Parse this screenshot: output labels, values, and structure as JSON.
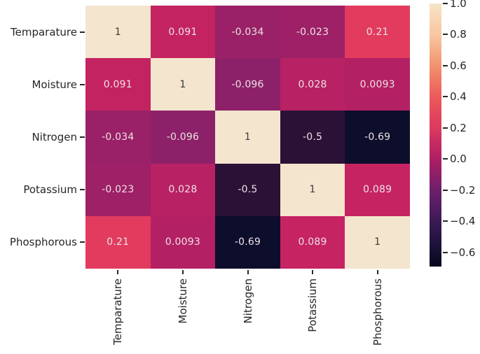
{
  "chart_data": {
    "type": "heatmap",
    "title": "",
    "xlabel": "",
    "ylabel": "",
    "categories": [
      "Temparature",
      "Moisture",
      "Nitrogen",
      "Potassium",
      "Phosphorous"
    ],
    "matrix": [
      [
        1,
        0.091,
        -0.034,
        -0.023,
        0.21
      ],
      [
        0.091,
        1,
        -0.096,
        0.028,
        0.0093
      ],
      [
        -0.034,
        -0.096,
        1,
        -0.5,
        -0.69
      ],
      [
        -0.023,
        0.028,
        -0.5,
        1,
        0.089
      ],
      [
        0.21,
        0.0093,
        -0.69,
        0.089,
        1
      ]
    ],
    "cell_labels": [
      [
        "1",
        "0.091",
        "-0.034",
        "-0.023",
        "0.21"
      ],
      [
        "0.091",
        "1",
        "-0.096",
        "0.028",
        "0.0093"
      ],
      [
        "-0.034",
        "-0.096",
        "1",
        "-0.5",
        "-0.69"
      ],
      [
        "-0.023",
        "0.028",
        "-0.5",
        "1",
        "0.089"
      ],
      [
        "0.21",
        "0.0093",
        "-0.69",
        "0.089",
        "1"
      ]
    ],
    "cell_colors": [
      [
        "#f3e5ce",
        "#c42361",
        "#9a2067",
        "#9e2066",
        "#e23b5e"
      ],
      [
        "#c42361",
        "#f3e5ce",
        "#8d2169",
        "#b82163",
        "#b42064"
      ],
      [
        "#9a2067",
        "#8d2169",
        "#f3e5ce",
        "#2c1137",
        "#0d0d2c"
      ],
      [
        "#9e2066",
        "#b82163",
        "#2c1137",
        "#f3e5ce",
        "#c62362"
      ],
      [
        "#e23b5e",
        "#b42064",
        "#0d0d2c",
        "#c62362",
        "#f3e5ce"
      ]
    ],
    "colorbar": {
      "vmin": -0.69,
      "vmax": 1.0,
      "tick_values": [
        1.0,
        0.8,
        0.6,
        0.4,
        0.2,
        0.0,
        -0.2,
        -0.4,
        -0.6
      ],
      "tick_labels": [
        "1.0",
        "0.8",
        "0.6",
        "0.4",
        "0.2",
        "0.0",
        "−0.2",
        "−0.4",
        "−0.6"
      ],
      "gradient_stops": [
        {
          "pos": 0.0,
          "color": "#f6e4c6"
        },
        {
          "pos": 0.059,
          "color": "#f8d5b4"
        },
        {
          "pos": 0.118,
          "color": "#f8c7a3"
        },
        {
          "pos": 0.178,
          "color": "#f5ad87"
        },
        {
          "pos": 0.237,
          "color": "#f2926e"
        },
        {
          "pos": 0.296,
          "color": "#ef7663"
        },
        {
          "pos": 0.355,
          "color": "#eb5b5c"
        },
        {
          "pos": 0.414,
          "color": "#e4485d"
        },
        {
          "pos": 0.473,
          "color": "#dc3a5f"
        },
        {
          "pos": 0.532,
          "color": "#c52b61"
        },
        {
          "pos": 0.592,
          "color": "#ad1f63"
        },
        {
          "pos": 0.651,
          "color": "#8e1f68"
        },
        {
          "pos": 0.71,
          "color": "#6d1f6c"
        },
        {
          "pos": 0.769,
          "color": "#541d62"
        },
        {
          "pos": 0.828,
          "color": "#3c1a55"
        },
        {
          "pos": 0.888,
          "color": "#271543"
        },
        {
          "pos": 0.947,
          "color": "#141031"
        },
        {
          "pos": 1.0,
          "color": "#05051c"
        }
      ]
    },
    "colors": {
      "annot_light": "#ece2e6",
      "annot_dark": "#3a3a3a",
      "axis_text": "#262626",
      "background": "#ffffff"
    },
    "layout_hints": {
      "legend_position": "right-colorbar",
      "grid": false,
      "x_tick_rotation_deg": 90
    }
  }
}
